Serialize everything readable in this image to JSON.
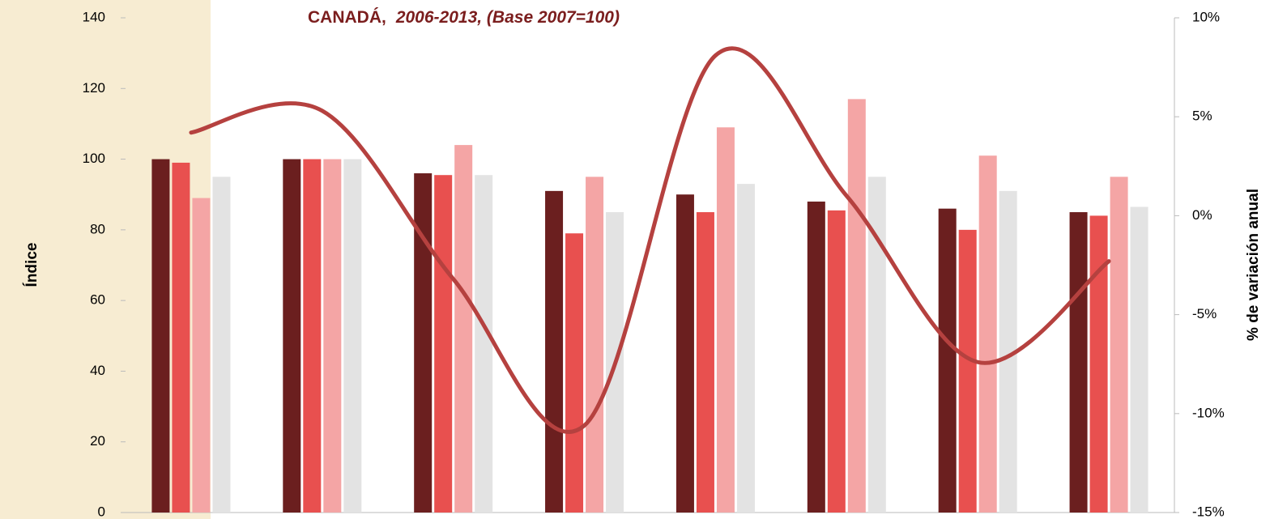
{
  "chart_data": {
    "type": "bar-line",
    "title": "CANADÁ,",
    "subtitle": "2006-2013,  (Base 2007=100)",
    "y_label": "Índice",
    "y2_label": "% de variación anual",
    "categories": [
      null,
      null,
      null,
      null,
      null,
      null,
      null,
      null
    ],
    "series": [
      {
        "color": "#6b1f1f",
        "values": [
          100,
          100,
          96,
          91,
          90,
          88,
          86,
          85
        ]
      },
      {
        "color": "#e8504f",
        "values": [
          99,
          100,
          95.5,
          79,
          85,
          85.5,
          80,
          84
        ]
      },
      {
        "color": "#f4a5a5",
        "values": [
          89,
          100,
          104,
          95,
          109,
          117,
          101,
          95
        ]
      },
      {
        "color": "#e3e3e3",
        "values": [
          95,
          100,
          95.5,
          85,
          93,
          95,
          91,
          86.5
        ]
      },
      {
        "color": "#b5413f",
        "axis": "y2",
        "line": true,
        "values": [
          4.2,
          5.3,
          -3.2,
          -10.6,
          8.1,
          1.0,
          -7.4,
          -2.3
        ]
      }
    ],
    "ylim": [
      0,
      140
    ],
    "yticks": [
      0,
      20,
      40,
      60,
      80,
      100,
      120,
      140
    ],
    "y2lim": [
      -15,
      10
    ],
    "y2ticks": [
      {
        "value": -15,
        "label": "-15%"
      },
      {
        "value": -10,
        "label": "-10%"
      },
      {
        "value": -5,
        "label": "-5%"
      },
      {
        "value": 0,
        "label": "0%"
      },
      {
        "value": 5,
        "label": "5%"
      },
      {
        "value": 10,
        "label": "10%"
      }
    ]
  }
}
